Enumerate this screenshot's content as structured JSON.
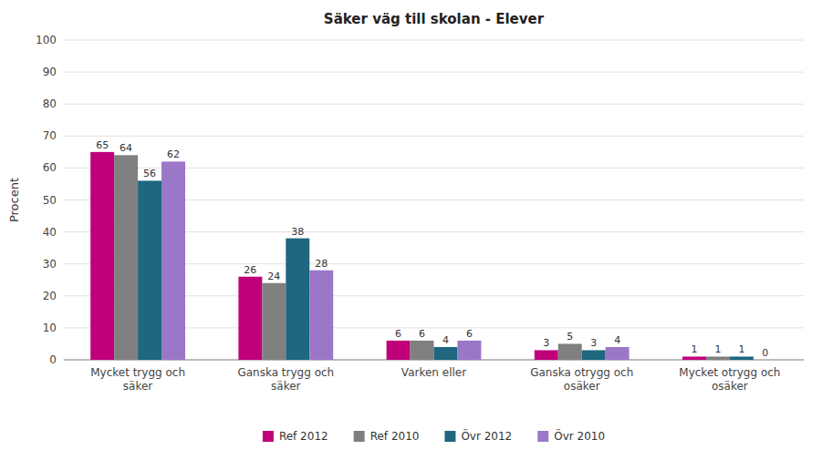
{
  "chart_data": {
    "type": "bar",
    "title": "Säker väg till skolan  - Elever",
    "categories": [
      "Mycket trygg och\nsäker",
      "Ganska trygg och\nsäker",
      "Varken eller",
      "Ganska otrygg och\nosäker",
      "Mycket otrygg och\nosäker"
    ],
    "series": [
      {
        "name": "Ref 2012",
        "color": "#C0007A",
        "values": [
          65,
          26,
          6,
          3,
          1
        ]
      },
      {
        "name": "Ref 2010",
        "color": "#808080",
        "values": [
          64,
          24,
          6,
          5,
          1
        ]
      },
      {
        "name": "Övr 2012",
        "color": "#1F6680",
        "values": [
          56,
          38,
          4,
          3,
          1
        ]
      },
      {
        "name": "Övr 2010",
        "color": "#9B77C8",
        "values": [
          62,
          28,
          6,
          4,
          0
        ]
      }
    ],
    "ylabel": "Procent",
    "ylim": [
      0,
      100
    ],
    "yticks": [
      0,
      10,
      20,
      30,
      40,
      50,
      60,
      70,
      80,
      90,
      100
    ],
    "grid": true,
    "data_labels": true,
    "legend": "bottom"
  }
}
